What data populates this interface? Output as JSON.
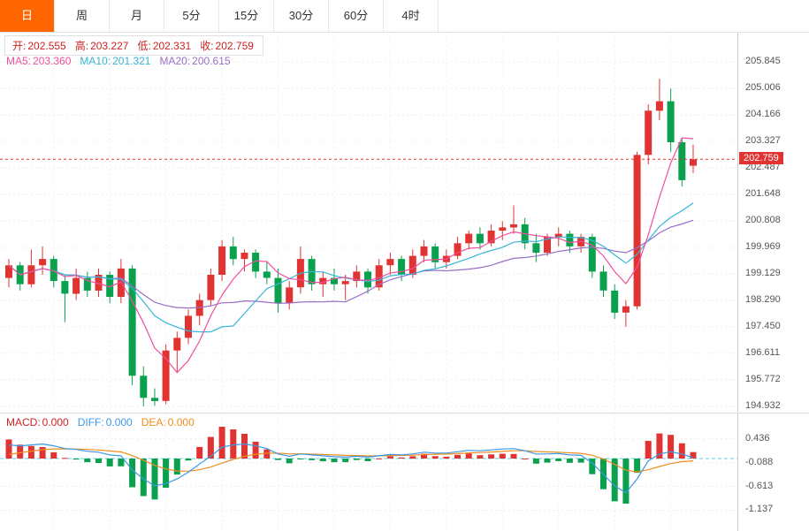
{
  "tabs": [
    {
      "label": "日",
      "active": true
    },
    {
      "label": "周",
      "active": false
    },
    {
      "label": "月",
      "active": false
    },
    {
      "label": "5分",
      "active": false
    },
    {
      "label": "15分",
      "active": false
    },
    {
      "label": "30分",
      "active": false
    },
    {
      "label": "60分",
      "active": false
    },
    {
      "label": "4时",
      "active": false
    }
  ],
  "legend": {
    "open_label": "开:",
    "open": "202.555",
    "high_label": "高:",
    "high": "203.227",
    "low_label": "低:",
    "low": "202.331",
    "close_label": "收:",
    "close": "202.759",
    "ma5_label": "MA5:",
    "ma5": "203.360",
    "ma10_label": "MA10:",
    "ma10": "201.321",
    "ma20_label": "MA20:",
    "ma20": "200.615"
  },
  "macd_legend": {
    "macd_label": "MACD:",
    "macd": "0.000",
    "diff_label": "DIFF:",
    "diff": "0.000",
    "dea_label": "DEA:",
    "dea": "0.000"
  },
  "current_price": "202.759",
  "colors": {
    "up": "#e23333",
    "down": "#0aa14e",
    "ma5": "#ef4f9f",
    "ma10": "#36b6d8",
    "ma20": "#9a6ec7",
    "diff": "#3b97e8",
    "dea": "#ef8d1f",
    "zero_line": "#62cfe0",
    "grid": "#ededed",
    "vgrid": "#f0f0f0",
    "accent": "#ff6600",
    "axis_text": "#555"
  },
  "chart_data": {
    "type": "candlestick",
    "interval": "日",
    "ohlc_current": {
      "open": 202.555,
      "high": 203.227,
      "low": 202.331,
      "close": 202.759
    },
    "ma_values": {
      "MA5": 203.36,
      "MA10": 201.321,
      "MA20": 200.615
    },
    "price_axis_ticks": [
      "205.845",
      "205.006",
      "204.166",
      "203.327",
      "202.487",
      "201.648",
      "200.808",
      "199.969",
      "199.129",
      "198.290",
      "197.450",
      "196.611",
      "195.772",
      "194.932"
    ],
    "price_range": [
      194.76,
      206.8
    ],
    "candles": [
      [
        199.0,
        199.6,
        198.7,
        199.4
      ],
      [
        199.4,
        199.5,
        198.6,
        198.8
      ],
      [
        198.8,
        199.9,
        198.7,
        199.4
      ],
      [
        199.4,
        200.0,
        199.1,
        199.6
      ],
      [
        199.6,
        199.7,
        198.7,
        198.9
      ],
      [
        198.9,
        199.1,
        197.6,
        198.5
      ],
      [
        198.5,
        199.3,
        198.3,
        199.0
      ],
      [
        199.0,
        199.2,
        198.4,
        198.6
      ],
      [
        198.6,
        199.3,
        198.4,
        199.1
      ],
      [
        199.1,
        199.2,
        198.2,
        198.4
      ],
      [
        198.4,
        199.6,
        198.2,
        199.3
      ],
      [
        199.3,
        199.4,
        195.6,
        195.9
      ],
      [
        195.9,
        196.2,
        194.93,
        195.2
      ],
      [
        195.2,
        195.5,
        194.95,
        195.1
      ],
      [
        195.1,
        196.9,
        195.0,
        196.7
      ],
      [
        196.7,
        197.3,
        196.0,
        197.1
      ],
      [
        197.1,
        198.0,
        196.9,
        197.8
      ],
      [
        197.8,
        198.5,
        197.5,
        198.3
      ],
      [
        198.3,
        199.3,
        198.1,
        199.1
      ],
      [
        199.1,
        200.2,
        198.9,
        200.0
      ],
      [
        200.0,
        200.3,
        199.4,
        199.6
      ],
      [
        199.6,
        199.9,
        199.2,
        199.8
      ],
      [
        199.8,
        199.9,
        199.0,
        199.2
      ],
      [
        199.2,
        199.5,
        198.8,
        199.0
      ],
      [
        199.0,
        199.3,
        197.9,
        198.2
      ],
      [
        198.2,
        198.9,
        198.0,
        198.7
      ],
      [
        198.7,
        200.0,
        198.5,
        199.6
      ],
      [
        199.6,
        199.7,
        198.6,
        198.8
      ],
      [
        198.8,
        199.2,
        198.4,
        199.0
      ],
      [
        199.0,
        199.3,
        198.6,
        198.8
      ],
      [
        198.8,
        199.1,
        198.3,
        198.9
      ],
      [
        198.9,
        199.4,
        198.7,
        199.2
      ],
      [
        199.2,
        199.3,
        198.5,
        198.7
      ],
      [
        198.7,
        199.6,
        198.6,
        199.4
      ],
      [
        199.4,
        199.8,
        199.1,
        199.6
      ],
      [
        199.6,
        199.7,
        198.9,
        199.1
      ],
      [
        199.1,
        199.9,
        199.0,
        199.7
      ],
      [
        199.7,
        200.2,
        199.5,
        200.0
      ],
      [
        200.0,
        200.1,
        199.3,
        199.5
      ],
      [
        199.5,
        199.9,
        199.3,
        199.7
      ],
      [
        199.7,
        200.3,
        199.6,
        200.1
      ],
      [
        200.1,
        200.5,
        199.9,
        200.4
      ],
      [
        200.4,
        200.6,
        199.9,
        200.1
      ],
      [
        200.1,
        200.7,
        200.0,
        200.5
      ],
      [
        200.5,
        200.8,
        200.2,
        200.6
      ],
      [
        200.6,
        201.3,
        200.4,
        200.7
      ],
      [
        200.7,
        200.9,
        199.9,
        200.1
      ],
      [
        200.1,
        200.4,
        199.5,
        199.8
      ],
      [
        199.8,
        200.4,
        199.7,
        200.3
      ],
      [
        200.3,
        200.6,
        200.0,
        200.4
      ],
      [
        200.4,
        200.5,
        199.8,
        200.0
      ],
      [
        200.0,
        200.4,
        199.8,
        200.3
      ],
      [
        200.3,
        200.4,
        199.0,
        199.2
      ],
      [
        199.2,
        199.4,
        198.4,
        198.6
      ],
      [
        198.6,
        198.8,
        197.7,
        197.9
      ],
      [
        197.9,
        198.3,
        197.45,
        198.1
      ],
      [
        198.1,
        203.0,
        198.0,
        202.9
      ],
      [
        202.9,
        204.5,
        202.6,
        204.3
      ],
      [
        204.3,
        205.31,
        204.0,
        204.6
      ],
      [
        204.6,
        205.0,
        203.0,
        203.3
      ],
      [
        203.3,
        203.45,
        201.9,
        202.1
      ],
      [
        202.555,
        203.227,
        202.331,
        202.759
      ]
    ],
    "macd": {
      "values": {
        "MACD": 0.0,
        "DIFF": 0.0,
        "DEA": 0.0
      },
      "axis_ticks": [
        "0.436",
        "-0.088",
        "-0.613",
        "-1.137"
      ],
      "range": [
        -1.594,
        0.991
      ],
      "diff_estimated": [
        0.3,
        0.28,
        0.3,
        0.32,
        0.28,
        0.22,
        0.2,
        0.16,
        0.14,
        0.08,
        0.06,
        -0.25,
        -0.45,
        -0.6,
        -0.55,
        -0.45,
        -0.3,
        -0.12,
        0.05,
        0.25,
        0.3,
        0.32,
        0.28,
        0.22,
        0.1,
        0.05,
        0.1,
        0.08,
        0.06,
        0.04,
        0.03,
        0.05,
        0.03,
        0.06,
        0.09,
        0.08,
        0.1,
        0.14,
        0.12,
        0.12,
        0.15,
        0.18,
        0.17,
        0.19,
        0.21,
        0.22,
        0.17,
        0.1,
        0.1,
        0.11,
        0.08,
        0.07,
        -0.1,
        -0.35,
        -0.6,
        -0.75,
        -0.45,
        -0.05,
        0.1,
        0.15,
        0.1,
        0.02
      ]
    }
  }
}
